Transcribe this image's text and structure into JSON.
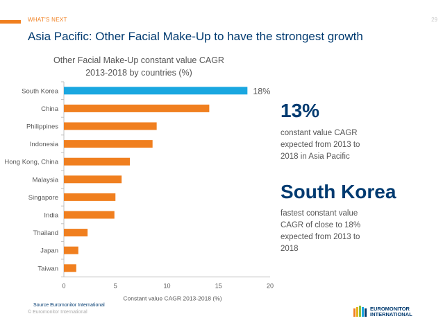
{
  "header": {
    "section_label": "WHAT'S NEXT",
    "page_number": "29",
    "title": "Asia Pacific: Other Facial Make-Up to have the strongest growth"
  },
  "chart_title_line1": "Other Facial Make-Up constant value CAGR",
  "chart_title_line2": "2013-2018 by countries (%)",
  "chart_data": {
    "type": "bar",
    "orientation": "horizontal",
    "title": "Other Facial Make-Up constant value CAGR 2013-2018 by countries (%)",
    "categories": [
      "South Korea",
      "China",
      "Philippines",
      "Indonesia",
      "Hong Kong, China",
      "Malaysia",
      "Singapore",
      "India",
      "Thailand",
      "Japan",
      "Taiwan"
    ],
    "values": [
      17.8,
      14.1,
      9.0,
      8.6,
      6.4,
      5.6,
      5.0,
      4.9,
      2.3,
      1.4,
      1.2
    ],
    "highlight_index": 0,
    "highlight_label": "18%",
    "xlabel": "Constant value CAGR 2013-2018 (%)",
    "xlim": [
      0,
      20
    ],
    "xticks": [
      0,
      5,
      10,
      15,
      20
    ],
    "colors": {
      "default": "#f07f1f",
      "highlight": "#1aa7e0"
    }
  },
  "kpis": [
    {
      "value": "13%",
      "text_lines": [
        "constant value CAGR",
        "expected from 2013 to",
        "2018 in Asia Pacific"
      ]
    },
    {
      "value": "South Korea",
      "text_lines": [
        "fastest constant value",
        "CAGR of close to 18%",
        "expected from 2013 to",
        "2018"
      ]
    }
  ],
  "footer": {
    "source": "Source Euromonitor International",
    "copyright": "© Euromonitor International",
    "logo_line1": "EUROMONITOR",
    "logo_line2": "INTERNATIONAL"
  },
  "colors": {
    "accent": "#f07f1f",
    "navy": "#003a70",
    "highlight": "#1aa7e0"
  }
}
